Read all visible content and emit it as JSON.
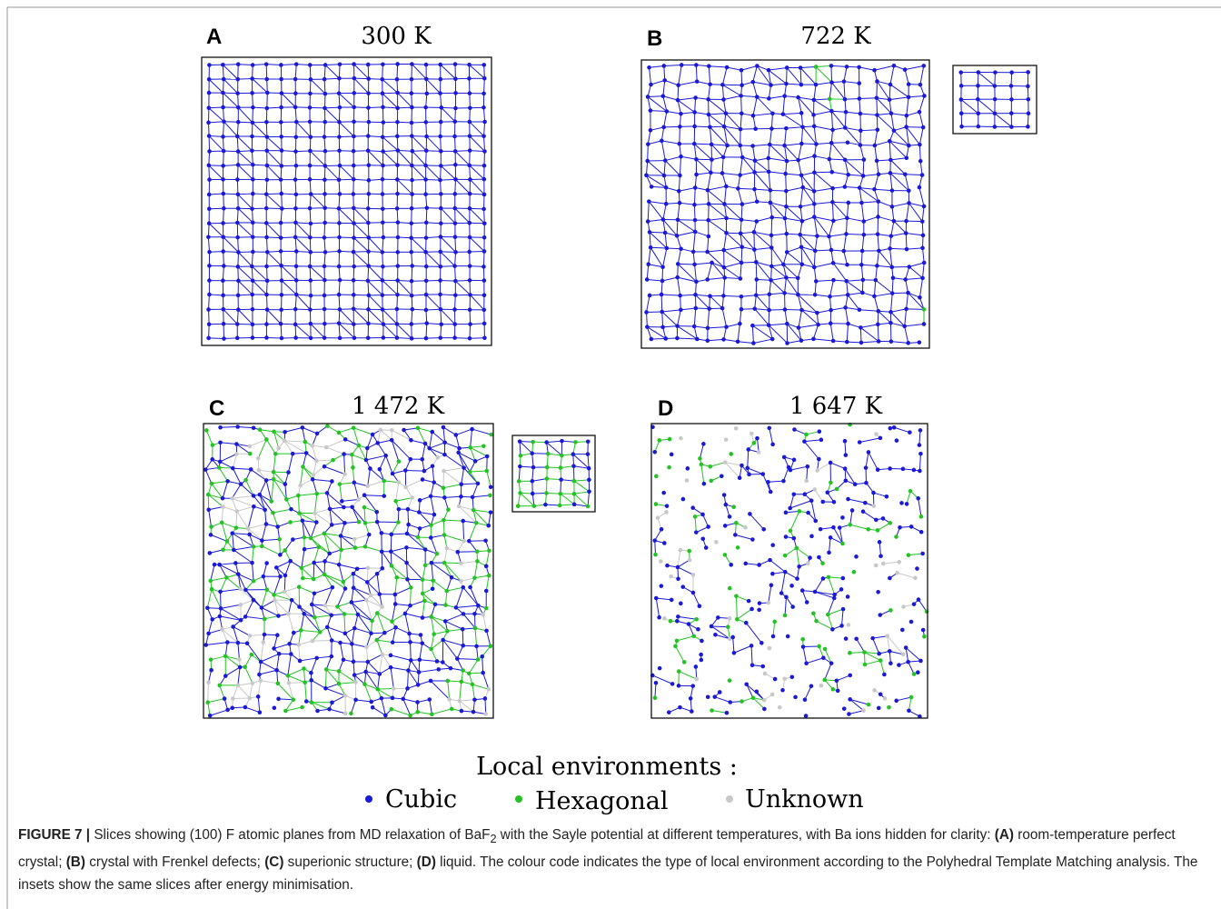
{
  "panels": [
    {
      "letter": "A",
      "title": "300 K"
    },
    {
      "letter": "B",
      "title": "722 K"
    },
    {
      "letter": "C",
      "title": "1 472 K"
    },
    {
      "letter": "D",
      "title": "1 647 K"
    }
  ],
  "legend": {
    "title": "Local environments :",
    "items": [
      "Cubic",
      "Hexagonal",
      "Unknown"
    ]
  },
  "caption": {
    "label": "FIGURE 7 |",
    "parts": [
      "Slices showing (100) F atomic planes from MD relaxation of BaF",
      "2",
      " with the Sayle potential at different temperatures, with Ba ions hidden for clarity: ",
      "(A)",
      " room-temperature perfect crystal; ",
      "(B)",
      " crystal with Frenkel defects; ",
      "(C)",
      " superionic structure; ",
      "(D)",
      " liquid. The colour code indicates the type of local environment according to the Polyhedral Template Matching analysis. The insets show the same slices after energy minimisation."
    ]
  }
}
